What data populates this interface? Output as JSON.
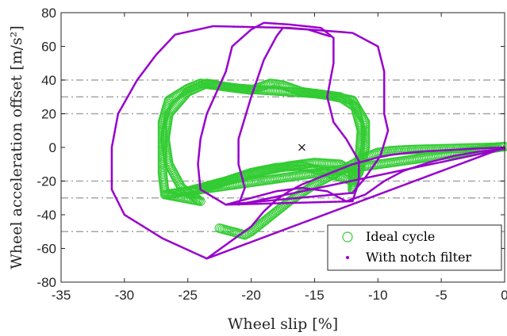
{
  "chart_data": {
    "type": "scatter",
    "xlabel": "Wheel slip [%]",
    "ylabel": "Wheel acceleration offset [m/s²]",
    "xlim": [
      -35,
      0
    ],
    "ylim": [
      -80,
      80
    ],
    "xticks": [
      "-35",
      "-30",
      "-25",
      "-20",
      "-15",
      "-10",
      "-5",
      "0"
    ],
    "yticks": [
      "80",
      "60",
      "40",
      "20",
      "0",
      "-20",
      "-40",
      "-60",
      "-80"
    ],
    "grid": false,
    "legend_position": "bottom-right",
    "reference_lines": {
      "style": "dash-dot",
      "color": "#a6a6a6",
      "y": [
        40,
        30,
        20,
        -20,
        -30,
        -50
      ]
    },
    "reference_marker": {
      "symbol": "x",
      "x": -16,
      "y": 0
    },
    "series": [
      {
        "name": "Ideal cycle",
        "marker": "open-circle",
        "color": "#33cc33",
        "points": [
          [
            -22.5,
            -48
          ],
          [
            -20.5,
            -52
          ],
          [
            -20,
            -50
          ],
          [
            -19,
            -44
          ],
          [
            -18,
            -38
          ],
          [
            -17,
            -32
          ],
          [
            -16,
            -27
          ],
          [
            -15,
            -22
          ],
          [
            -14,
            -18
          ],
          [
            -13,
            -14
          ],
          [
            -12,
            -10
          ],
          [
            -11,
            -6
          ],
          [
            -10,
            -3
          ],
          [
            -9,
            -2
          ],
          [
            -8,
            -1.5
          ],
          [
            -7,
            -1.2
          ],
          [
            -6,
            -1
          ],
          [
            -5,
            -0.8
          ],
          [
            -4,
            -0.6
          ],
          [
            -3,
            -0.4
          ],
          [
            -2,
            -0.2
          ],
          [
            -1,
            0
          ],
          [
            0,
            0.5
          ],
          [
            -26.8,
            -28
          ],
          [
            -25,
            -26
          ],
          [
            -23,
            -22
          ],
          [
            -21,
            -18
          ],
          [
            -19,
            -14
          ],
          [
            -17,
            -11
          ],
          [
            -15,
            -9
          ],
          [
            -13,
            -10
          ],
          [
            -12,
            -14
          ],
          [
            -12,
            -20
          ],
          [
            -12,
            -25
          ],
          [
            -12,
            -25
          ],
          [
            -11.5,
            -10
          ],
          [
            -11.3,
            10
          ],
          [
            -11.8,
            24
          ],
          [
            -13,
            30
          ],
          [
            -15,
            32
          ],
          [
            -17,
            33
          ],
          [
            -19,
            34
          ],
          [
            -21,
            35
          ],
          [
            -23,
            37
          ],
          [
            -24,
            38
          ],
          [
            -25,
            35
          ],
          [
            -26.5,
            28
          ],
          [
            -27,
            15
          ],
          [
            -27,
            0
          ],
          [
            -27,
            -15
          ],
          [
            -26.8,
            -28
          ],
          [
            -24,
            -32
          ],
          [
            -25.5,
            -24
          ],
          [
            -26.5,
            -10
          ],
          [
            -26.8,
            5
          ],
          [
            -26.5,
            20
          ],
          [
            -25,
            33
          ],
          [
            -23.5,
            38
          ],
          [
            -22,
            36
          ],
          [
            -20,
            34
          ],
          [
            -18.5,
            38
          ],
          [
            -17.5,
            37
          ],
          [
            -16,
            33
          ],
          [
            -14,
            31
          ],
          [
            -12,
            28
          ],
          [
            -11,
            15
          ],
          [
            -11,
            0
          ],
          [
            -11.5,
            -15
          ],
          [
            -12,
            -20
          ],
          [
            -14,
            -15
          ],
          [
            -16,
            -11
          ],
          [
            -18,
            -12
          ],
          [
            -20,
            -15
          ],
          [
            -22,
            -20
          ],
          [
            -24,
            -25
          ]
        ]
      },
      {
        "name": "With notch filter",
        "marker": "dot",
        "color": "#9900cc",
        "points": [
          [
            -23.5,
            -66
          ],
          [
            -20,
            -47
          ],
          [
            -19,
            -38
          ],
          [
            -18,
            -31
          ],
          [
            -17,
            -26
          ],
          [
            -16,
            -22
          ],
          [
            -15,
            -19
          ],
          [
            -14,
            -16
          ],
          [
            -13,
            -13
          ],
          [
            -12,
            -10
          ],
          [
            -11,
            -8
          ],
          [
            -10,
            -6
          ],
          [
            -9,
            -4.5
          ],
          [
            -8,
            -3.5
          ],
          [
            -7,
            -2.8
          ],
          [
            -6,
            -2.2
          ],
          [
            -5,
            -1.8
          ],
          [
            -4,
            -1.4
          ],
          [
            -3,
            -1
          ],
          [
            -2,
            -0.6
          ],
          [
            -1,
            -0.3
          ],
          [
            0,
            0
          ],
          [
            -23.5,
            -66
          ],
          [
            -27,
            -54
          ],
          [
            -30,
            -40
          ],
          [
            -31,
            -25
          ],
          [
            -31,
            0
          ],
          [
            -30.5,
            20
          ],
          [
            -29,
            40
          ],
          [
            -27.5,
            55
          ],
          [
            -26,
            67
          ],
          [
            -23,
            72
          ],
          [
            -17,
            71
          ],
          [
            -12,
            68
          ],
          [
            -10,
            60
          ],
          [
            -9.5,
            45
          ],
          [
            -9.5,
            20
          ],
          [
            -9.2,
            10
          ],
          [
            -9.8,
            -5
          ],
          [
            -11,
            -18
          ],
          [
            -12,
            -27
          ],
          [
            -22,
            -34
          ],
          [
            -24,
            -25
          ],
          [
            -24.2,
            -10
          ],
          [
            -24,
            5
          ],
          [
            -23.5,
            20
          ],
          [
            -22,
            45
          ],
          [
            -21.5,
            60
          ],
          [
            -20,
            70
          ],
          [
            -19,
            74
          ],
          [
            -17,
            73
          ],
          [
            -14.5,
            71
          ],
          [
            -13.5,
            65
          ],
          [
            -13.5,
            50
          ],
          [
            -14,
            30
          ],
          [
            -13.5,
            15
          ],
          [
            -12.5,
            5
          ],
          [
            -11.5,
            -8
          ],
          [
            -11.5,
            -20
          ],
          [
            -12,
            -32
          ],
          [
            -22,
            -34
          ],
          [
            -20,
            -30
          ],
          [
            -18,
            -26
          ],
          [
            -16,
            -24
          ],
          [
            -14,
            -26
          ],
          [
            -12.5,
            -32
          ],
          [
            -11,
            -28
          ],
          [
            -9.5,
            -20
          ],
          [
            -8,
            -14
          ],
          [
            -6,
            -9
          ],
          [
            -4,
            -5
          ],
          [
            -2,
            -2.5
          ],
          [
            0,
            -0.8
          ],
          [
            -21,
            -34
          ],
          [
            -20.5,
            -24
          ],
          [
            -21,
            -10
          ],
          [
            -21,
            5
          ],
          [
            -20,
            30
          ],
          [
            -19,
            52
          ],
          [
            -18,
            66
          ],
          [
            -17.5,
            71
          ],
          [
            -15.5,
            70
          ],
          [
            -13.8,
            66
          ]
        ]
      }
    ]
  }
}
